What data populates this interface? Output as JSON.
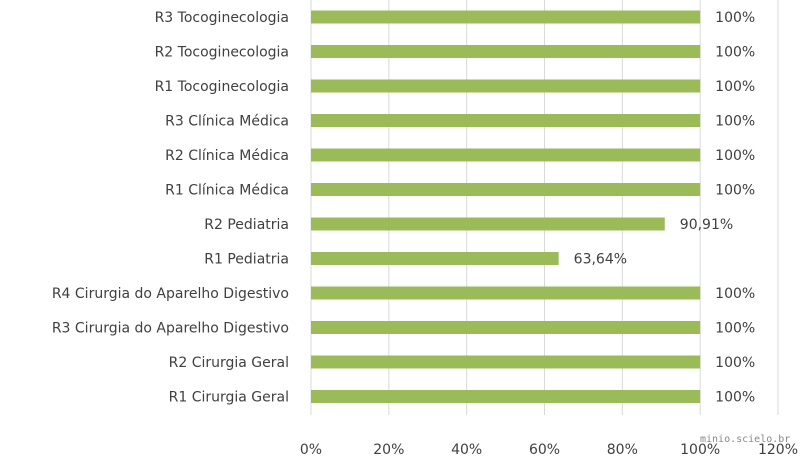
{
  "chart_data": {
    "type": "bar",
    "orientation": "horizontal",
    "categories": [
      "R3 Tocoginecologia",
      "R2 Tocoginecologia",
      "R1 Tocoginecologia",
      "R3 Clínica Médica",
      "R2 Clínica Médica",
      "R1 Clínica Médica",
      "R2 Pediatria",
      "R1 Pediatria",
      "R4 Cirurgia do Aparelho Digestivo",
      "R3 Cirurgia do Aparelho Digestivo",
      "R2 Cirurgia Geral",
      "R1 Cirurgia Geral"
    ],
    "values": [
      100,
      100,
      100,
      100,
      100,
      100,
      90.91,
      63.64,
      100,
      100,
      100,
      100
    ],
    "data_labels": [
      "100%",
      "100%",
      "100%",
      "100%",
      "100%",
      "100%",
      "90,91%",
      "63,64%",
      "100%",
      "100%",
      "100%",
      "100%"
    ],
    "xlim": [
      0,
      120
    ],
    "xticks": [
      "0%",
      "20%",
      "40%",
      "60%",
      "80%",
      "100%",
      "120%"
    ],
    "grid": true,
    "bar_color": "#9bbb59"
  },
  "watermark": "minio.scielo.br"
}
